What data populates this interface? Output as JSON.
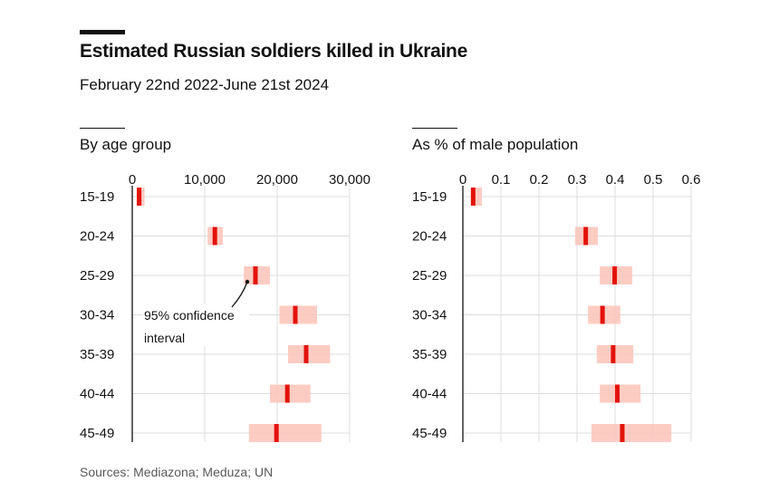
{
  "header": {
    "title": "Estimated Russian soldiers killed in Ukraine",
    "subtitle": "February 22nd 2022-June 21st 2024"
  },
  "footer": {
    "source": "Sources: Mediazona; Meduza; UN"
  },
  "colors": {
    "estimate": "#e3120b",
    "interval": "#fcc7bd",
    "grid": "#dcdcdc",
    "axis": "#121212"
  },
  "chart_data": [
    {
      "type": "bar",
      "subtype": "range-with-point",
      "title": "By age group",
      "xlabel": "",
      "ylabel": "",
      "categories": [
        "15-19",
        "20-24",
        "25-29",
        "30-34",
        "35-39",
        "40-44",
        "45-49"
      ],
      "series": [
        {
          "name": "Estimate",
          "values": [
            950,
            11400,
            17000,
            22500,
            24000,
            21400,
            19900
          ]
        },
        {
          "name": "95% CI low",
          "values": [
            600,
            10400,
            15400,
            20300,
            21500,
            19000,
            16100
          ]
        },
        {
          "name": "95% CI high",
          "values": [
            1700,
            12500,
            19000,
            25500,
            27300,
            24600,
            26100
          ]
        }
      ],
      "xlim": [
        0,
        30000
      ],
      "ticks": [
        0,
        10000,
        20000,
        30000
      ],
      "tick_labels": [
        "0",
        "10,000",
        "20,000",
        "30,000"
      ],
      "grid": true,
      "annotation": {
        "text_line1": "95% confidence",
        "text_line2": "interval",
        "target_category": "25-29"
      }
    },
    {
      "type": "bar",
      "subtype": "range-with-point",
      "title": "As % of male population",
      "xlabel": "",
      "ylabel": "",
      "categories": [
        "15-19",
        "20-24",
        "25-29",
        "30-34",
        "35-39",
        "40-44",
        "45-49"
      ],
      "series": [
        {
          "name": "Estimate",
          "values": [
            0.027,
            0.323,
            0.399,
            0.367,
            0.395,
            0.406,
            0.419
          ]
        },
        {
          "name": "95% CI low",
          "values": [
            0.021,
            0.295,
            0.36,
            0.329,
            0.352,
            0.36,
            0.338
          ]
        },
        {
          "name": "95% CI high",
          "values": [
            0.05,
            0.355,
            0.445,
            0.414,
            0.448,
            0.467,
            0.548
          ]
        }
      ],
      "xlim": [
        0,
        0.6
      ],
      "ticks": [
        0,
        0.1,
        0.2,
        0.3,
        0.4,
        0.5,
        0.6
      ],
      "tick_labels": [
        "0",
        "0.1",
        "0.2",
        "0.3",
        "0.4",
        "0.5",
        "0.6"
      ],
      "grid": true
    }
  ]
}
